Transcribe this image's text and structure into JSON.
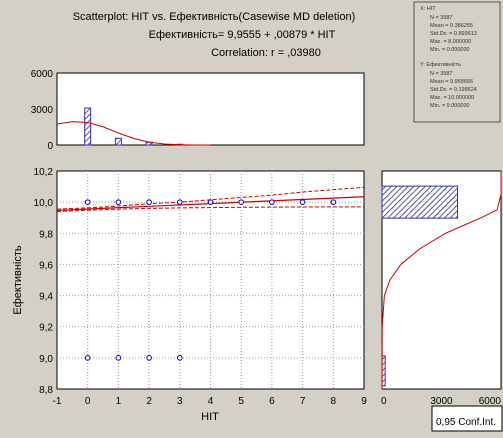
{
  "header": {
    "title": "Scatterplot: НІТ      vs.   Ефективність(Casewise MD deletion)",
    "equation": "Ефективність= 9,9555 + ,00879 * НІТ",
    "correlation": "Correlation: r = ,03980"
  },
  "stats_box": {
    "x": {
      "name": "X:  НІТ",
      "lines": [
        "N = 3987",
        "Mean = 0.386255",
        "Std.Dv. = 0.899613",
        "Max. = 8.000000",
        "Min. = 0.000000"
      ]
    },
    "y": {
      "name": "Y:  Ефективність",
      "lines": [
        "N = 3987",
        "Mean = 9.958666",
        "Std.Dv. = 0.198624",
        "Max. = 10.000000",
        "Min. = 9.000000"
      ]
    }
  },
  "confint_label": "0,95 Conf.Int.",
  "chart_data": [
    {
      "type": "scatter",
      "title": "Scatterplot: НІТ vs. Ефективність(Casewise MD deletion)",
      "xlabel": "НІТ",
      "ylabel": "Ефективність",
      "xlim": [
        -1,
        9
      ],
      "ylim": [
        8.8,
        10.2
      ],
      "xticks": [
        "-1",
        "0",
        "1",
        "2",
        "3",
        "4",
        "5",
        "6",
        "7",
        "8",
        "9"
      ],
      "yticks": [
        "8,8",
        "9,0",
        "9,2",
        "9,4",
        "9,6",
        "9,8",
        "10,0",
        "10,2"
      ],
      "grid": true,
      "points": [
        [
          0,
          10.0
        ],
        [
          1,
          10.0
        ],
        [
          2,
          10.0
        ],
        [
          3,
          10.0
        ],
        [
          4,
          10.0
        ],
        [
          5,
          10.0
        ],
        [
          6,
          10.0
        ],
        [
          7,
          10.0
        ],
        [
          8,
          10.0
        ],
        [
          0,
          9.0
        ],
        [
          1,
          9.0
        ],
        [
          2,
          9.0
        ],
        [
          3,
          9.0
        ]
      ],
      "regression": {
        "intercept": 9.9555,
        "slope": 0.00879
      },
      "conf_band": [
        {
          "x": -1,
          "lower": 9.94,
          "upper": 9.955
        },
        {
          "x": 0,
          "lower": 9.948,
          "upper": 9.963
        },
        {
          "x": 1,
          "lower": 9.955,
          "upper": 9.975
        },
        {
          "x": 2,
          "lower": 9.96,
          "upper": 9.99
        },
        {
          "x": 3,
          "lower": 9.963,
          "upper": 10.0
        },
        {
          "x": 4,
          "lower": 9.965,
          "upper": 10.015
        },
        {
          "x": 5,
          "lower": 9.967,
          "upper": 10.03
        },
        {
          "x": 6,
          "lower": 9.968,
          "upper": 10.045
        },
        {
          "x": 7,
          "lower": 9.969,
          "upper": 10.065
        },
        {
          "x": 8,
          "lower": 9.97,
          "upper": 10.08
        },
        {
          "x": 9,
          "lower": 9.97,
          "upper": 10.095
        }
      ]
    },
    {
      "type": "bar",
      "title": "",
      "categories": [
        "0",
        "1",
        "2",
        "3"
      ],
      "values": [
        3080,
        560,
        220,
        60
      ],
      "ylim": [
        0,
        6000
      ],
      "yticks": [
        "0",
        "3000",
        "6000"
      ],
      "normal_curve": [
        {
          "x": -1,
          "y": 1750
        },
        {
          "x": -0.5,
          "y": 1950
        },
        {
          "x": 0,
          "y": 1880
        },
        {
          "x": 0.5,
          "y": 1520
        },
        {
          "x": 1,
          "y": 1000
        },
        {
          "x": 1.5,
          "y": 540
        },
        {
          "x": 2,
          "y": 240
        },
        {
          "x": 2.5,
          "y": 80
        },
        {
          "x": 3,
          "y": 20
        },
        {
          "x": 3.5,
          "y": 5
        },
        {
          "x": 4,
          "y": 0
        }
      ]
    },
    {
      "type": "bar",
      "orientation": "horizontal",
      "title": "",
      "categories": [
        "9,0",
        "10,0"
      ],
      "values": [
        160,
        3810
      ],
      "xlim": [
        0,
        6000
      ],
      "xticks": [
        "0",
        "3000",
        "6000"
      ],
      "normal_curve": [
        {
          "y": 8.8,
          "x": 0
        },
        {
          "y": 9.2,
          "x": 10
        },
        {
          "y": 9.4,
          "x": 120
        },
        {
          "y": 9.5,
          "x": 400
        },
        {
          "y": 9.6,
          "x": 950
        },
        {
          "y": 9.7,
          "x": 1900
        },
        {
          "y": 9.8,
          "x": 3200
        },
        {
          "y": 9.85,
          "x": 4100
        },
        {
          "y": 9.9,
          "x": 5000
        },
        {
          "y": 9.95,
          "x": 5800
        },
        {
          "y": 10.05,
          "x": 6200
        },
        {
          "y": 10.2,
          "x": 6000
        }
      ]
    }
  ],
  "colors": {
    "background": "#d4d0c8",
    "plot_bg": "#ffffff",
    "points": "#0000cc",
    "bars": "#3030a0",
    "fit_line": "#cc0000",
    "grid": "#9a9a9a"
  }
}
